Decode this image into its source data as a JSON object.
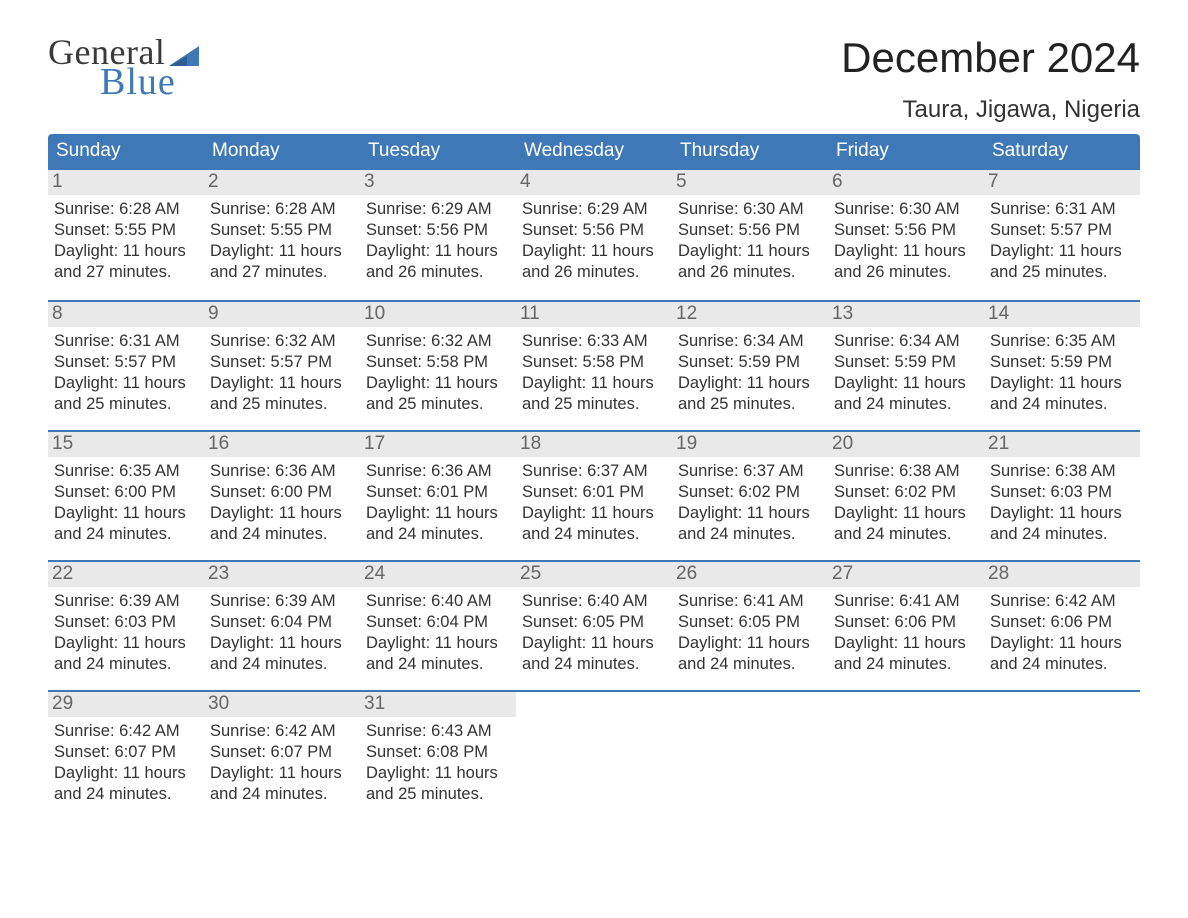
{
  "logo": {
    "text1": "General",
    "text2": "Blue"
  },
  "colors": {
    "accent": "#3e78b6",
    "header_stripe": "#e9e9e9",
    "background": "#ffffff",
    "text": "#333333",
    "dow_text": "#ffffff",
    "daynum_text": "#666666"
  },
  "header": {
    "month_title": "December 2024",
    "location": "Taura, Jigawa, Nigeria"
  },
  "calendar": {
    "days_of_week": [
      "Sunday",
      "Monday",
      "Tuesday",
      "Wednesday",
      "Thursday",
      "Friday",
      "Saturday"
    ],
    "labels": {
      "sunrise": "Sunrise",
      "sunset": "Sunset",
      "daylight": "Daylight"
    },
    "weeks": [
      [
        {
          "n": "1",
          "sr": "6:28 AM",
          "ss": "5:55 PM",
          "dl": "11 hours and 27 minutes."
        },
        {
          "n": "2",
          "sr": "6:28 AM",
          "ss": "5:55 PM",
          "dl": "11 hours and 27 minutes."
        },
        {
          "n": "3",
          "sr": "6:29 AM",
          "ss": "5:56 PM",
          "dl": "11 hours and 26 minutes."
        },
        {
          "n": "4",
          "sr": "6:29 AM",
          "ss": "5:56 PM",
          "dl": "11 hours and 26 minutes."
        },
        {
          "n": "5",
          "sr": "6:30 AM",
          "ss": "5:56 PM",
          "dl": "11 hours and 26 minutes."
        },
        {
          "n": "6",
          "sr": "6:30 AM",
          "ss": "5:56 PM",
          "dl": "11 hours and 26 minutes."
        },
        {
          "n": "7",
          "sr": "6:31 AM",
          "ss": "5:57 PM",
          "dl": "11 hours and 25 minutes."
        }
      ],
      [
        {
          "n": "8",
          "sr": "6:31 AM",
          "ss": "5:57 PM",
          "dl": "11 hours and 25 minutes."
        },
        {
          "n": "9",
          "sr": "6:32 AM",
          "ss": "5:57 PM",
          "dl": "11 hours and 25 minutes."
        },
        {
          "n": "10",
          "sr": "6:32 AM",
          "ss": "5:58 PM",
          "dl": "11 hours and 25 minutes."
        },
        {
          "n": "11",
          "sr": "6:33 AM",
          "ss": "5:58 PM",
          "dl": "11 hours and 25 minutes."
        },
        {
          "n": "12",
          "sr": "6:34 AM",
          "ss": "5:59 PM",
          "dl": "11 hours and 25 minutes."
        },
        {
          "n": "13",
          "sr": "6:34 AM",
          "ss": "5:59 PM",
          "dl": "11 hours and 24 minutes."
        },
        {
          "n": "14",
          "sr": "6:35 AM",
          "ss": "5:59 PM",
          "dl": "11 hours and 24 minutes."
        }
      ],
      [
        {
          "n": "15",
          "sr": "6:35 AM",
          "ss": "6:00 PM",
          "dl": "11 hours and 24 minutes."
        },
        {
          "n": "16",
          "sr": "6:36 AM",
          "ss": "6:00 PM",
          "dl": "11 hours and 24 minutes."
        },
        {
          "n": "17",
          "sr": "6:36 AM",
          "ss": "6:01 PM",
          "dl": "11 hours and 24 minutes."
        },
        {
          "n": "18",
          "sr": "6:37 AM",
          "ss": "6:01 PM",
          "dl": "11 hours and 24 minutes."
        },
        {
          "n": "19",
          "sr": "6:37 AM",
          "ss": "6:02 PM",
          "dl": "11 hours and 24 minutes."
        },
        {
          "n": "20",
          "sr": "6:38 AM",
          "ss": "6:02 PM",
          "dl": "11 hours and 24 minutes."
        },
        {
          "n": "21",
          "sr": "6:38 AM",
          "ss": "6:03 PM",
          "dl": "11 hours and 24 minutes."
        }
      ],
      [
        {
          "n": "22",
          "sr": "6:39 AM",
          "ss": "6:03 PM",
          "dl": "11 hours and 24 minutes."
        },
        {
          "n": "23",
          "sr": "6:39 AM",
          "ss": "6:04 PM",
          "dl": "11 hours and 24 minutes."
        },
        {
          "n": "24",
          "sr": "6:40 AM",
          "ss": "6:04 PM",
          "dl": "11 hours and 24 minutes."
        },
        {
          "n": "25",
          "sr": "6:40 AM",
          "ss": "6:05 PM",
          "dl": "11 hours and 24 minutes."
        },
        {
          "n": "26",
          "sr": "6:41 AM",
          "ss": "6:05 PM",
          "dl": "11 hours and 24 minutes."
        },
        {
          "n": "27",
          "sr": "6:41 AM",
          "ss": "6:06 PM",
          "dl": "11 hours and 24 minutes."
        },
        {
          "n": "28",
          "sr": "6:42 AM",
          "ss": "6:06 PM",
          "dl": "11 hours and 24 minutes."
        }
      ],
      [
        {
          "n": "29",
          "sr": "6:42 AM",
          "ss": "6:07 PM",
          "dl": "11 hours and 24 minutes."
        },
        {
          "n": "30",
          "sr": "6:42 AM",
          "ss": "6:07 PM",
          "dl": "11 hours and 24 minutes."
        },
        {
          "n": "31",
          "sr": "6:43 AM",
          "ss": "6:08 PM",
          "dl": "11 hours and 25 minutes."
        },
        null,
        null,
        null,
        null
      ]
    ]
  }
}
